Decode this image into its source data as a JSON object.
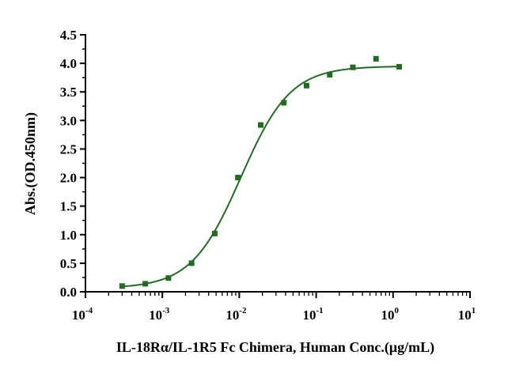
{
  "chart_data": {
    "type": "scatter",
    "title": "",
    "xlabel": "IL-18Rα/IL-1R5 Fc Chimera, Human Conc.(μg/mL)",
    "ylabel": "Abs.(OD.450nm)",
    "xscale": "log",
    "xlim": [
      0.0001,
      10
    ],
    "ylim": [
      0,
      4.5
    ],
    "x_ticks": [
      {
        "base": "10",
        "exp": "-4",
        "value": 0.0001
      },
      {
        "base": "10",
        "exp": "-3",
        "value": 0.001
      },
      {
        "base": "10",
        "exp": "-2",
        "value": 0.01
      },
      {
        "base": "10",
        "exp": "-1",
        "value": 0.1
      },
      {
        "base": "10",
        "exp": "0",
        "value": 1
      },
      {
        "base": "10",
        "exp": "1",
        "value": 10
      }
    ],
    "y_ticks": [
      "0.0",
      "0.5",
      "1.0",
      "1.5",
      "2.0",
      "2.5",
      "3.0",
      "3.5",
      "4.0",
      "4.5"
    ],
    "grid": false,
    "legend": "none",
    "color": "#1f6e1f",
    "series": [
      {
        "x": [
          0.0003,
          0.0006,
          0.0012,
          0.0024,
          0.0048,
          0.0096,
          0.019,
          0.038,
          0.075,
          0.15,
          0.3,
          0.6,
          1.2
        ],
        "y": [
          0.1,
          0.14,
          0.24,
          0.5,
          1.02,
          2.0,
          2.92,
          3.31,
          3.61,
          3.8,
          3.93,
          4.08,
          3.94
        ]
      }
    ],
    "fit": {
      "type": "4PL",
      "bottom": 0.06,
      "top": 3.95,
      "ec50": 0.0105,
      "hill": 1.35
    }
  }
}
